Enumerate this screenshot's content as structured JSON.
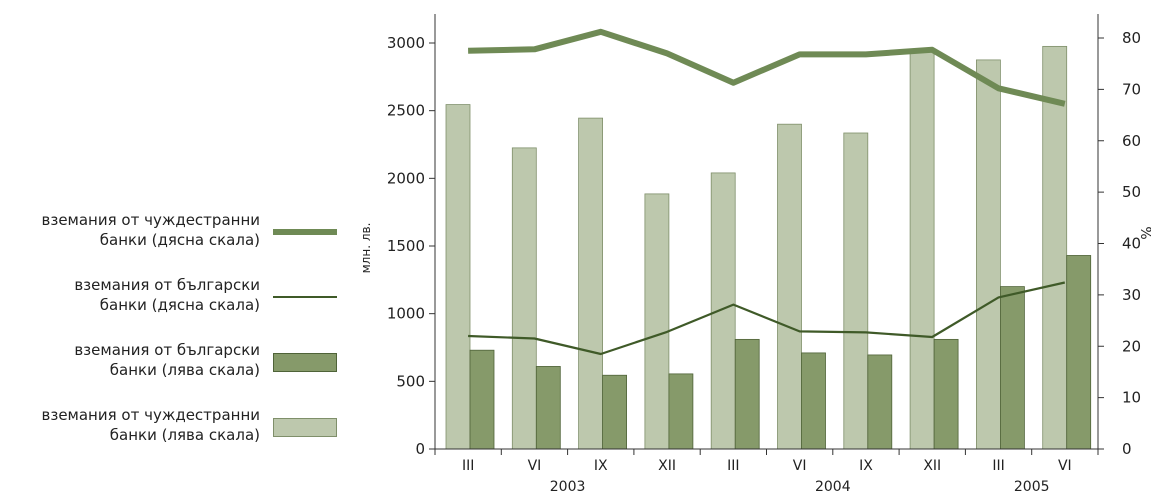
{
  "chart_data": {
    "type": "bar",
    "left_axis_label": "млн. лв.",
    "right_axis_label": "%",
    "left_ylim": [
      0,
      3000
    ],
    "left_ticks": [
      0,
      500,
      1000,
      1500,
      2000,
      2500,
      3000
    ],
    "right_ylim": [
      0,
      80
    ],
    "right_ticks": [
      0,
      10,
      20,
      30,
      40,
      50,
      60,
      70,
      80
    ],
    "categories": [
      "III",
      "VI",
      "IX",
      "XII",
      "III",
      "VI",
      "IX",
      "XII",
      "III",
      "VI"
    ],
    "years": [
      {
        "label": "2003",
        "start": 0,
        "end": 3
      },
      {
        "label": "2004",
        "start": 4,
        "end": 7
      },
      {
        "label": "2005",
        "start": 8,
        "end": 9
      }
    ],
    "series": [
      {
        "name": "вземания от чуждестранни банки (дясна скала)",
        "type": "line",
        "axis": "right",
        "color": "#6f8a55",
        "width": 6,
        "values": [
          77.5,
          77.8,
          81.2,
          77,
          71.3,
          76.8,
          76.8,
          77.7,
          70.2,
          67.2
        ]
      },
      {
        "name": "вземания от български банки (дясна скала)",
        "type": "line",
        "axis": "right",
        "color": "#3f5a28",
        "width": 2.2,
        "values": [
          22,
          21.5,
          18.5,
          22.8,
          28.1,
          22.9,
          22.7,
          21.8,
          29.5,
          32.4
        ]
      },
      {
        "name": "вземания от български банки (лява скала)",
        "type": "bar",
        "axis": "left",
        "color": "#869a6a",
        "stroke": "#4f6338",
        "values": [
          730,
          610,
          545,
          555,
          810,
          710,
          695,
          810,
          1200,
          1430
        ]
      },
      {
        "name": "вземания от чуждестранни банки (лява скала)",
        "type": "bar",
        "axis": "left",
        "color": "#bdc8ad",
        "stroke": "#7f8f6a",
        "values": [
          2545,
          2225,
          2445,
          1885,
          2040,
          2400,
          2335,
          2945,
          2875,
          2975
        ]
      }
    ],
    "legend_position": "left",
    "grid": false
  },
  "legend_order": [
    0,
    1,
    2,
    3
  ],
  "legend_lines": [
    [
      "вземания от чуждестранни",
      "банки (дясна скала)"
    ],
    [
      "вземания от български",
      "банки (дясна скала)"
    ],
    [
      "вземания от български",
      "банки (лява скала)"
    ],
    [
      "вземания от чуждестранни",
      "банки (лява скала)"
    ]
  ]
}
